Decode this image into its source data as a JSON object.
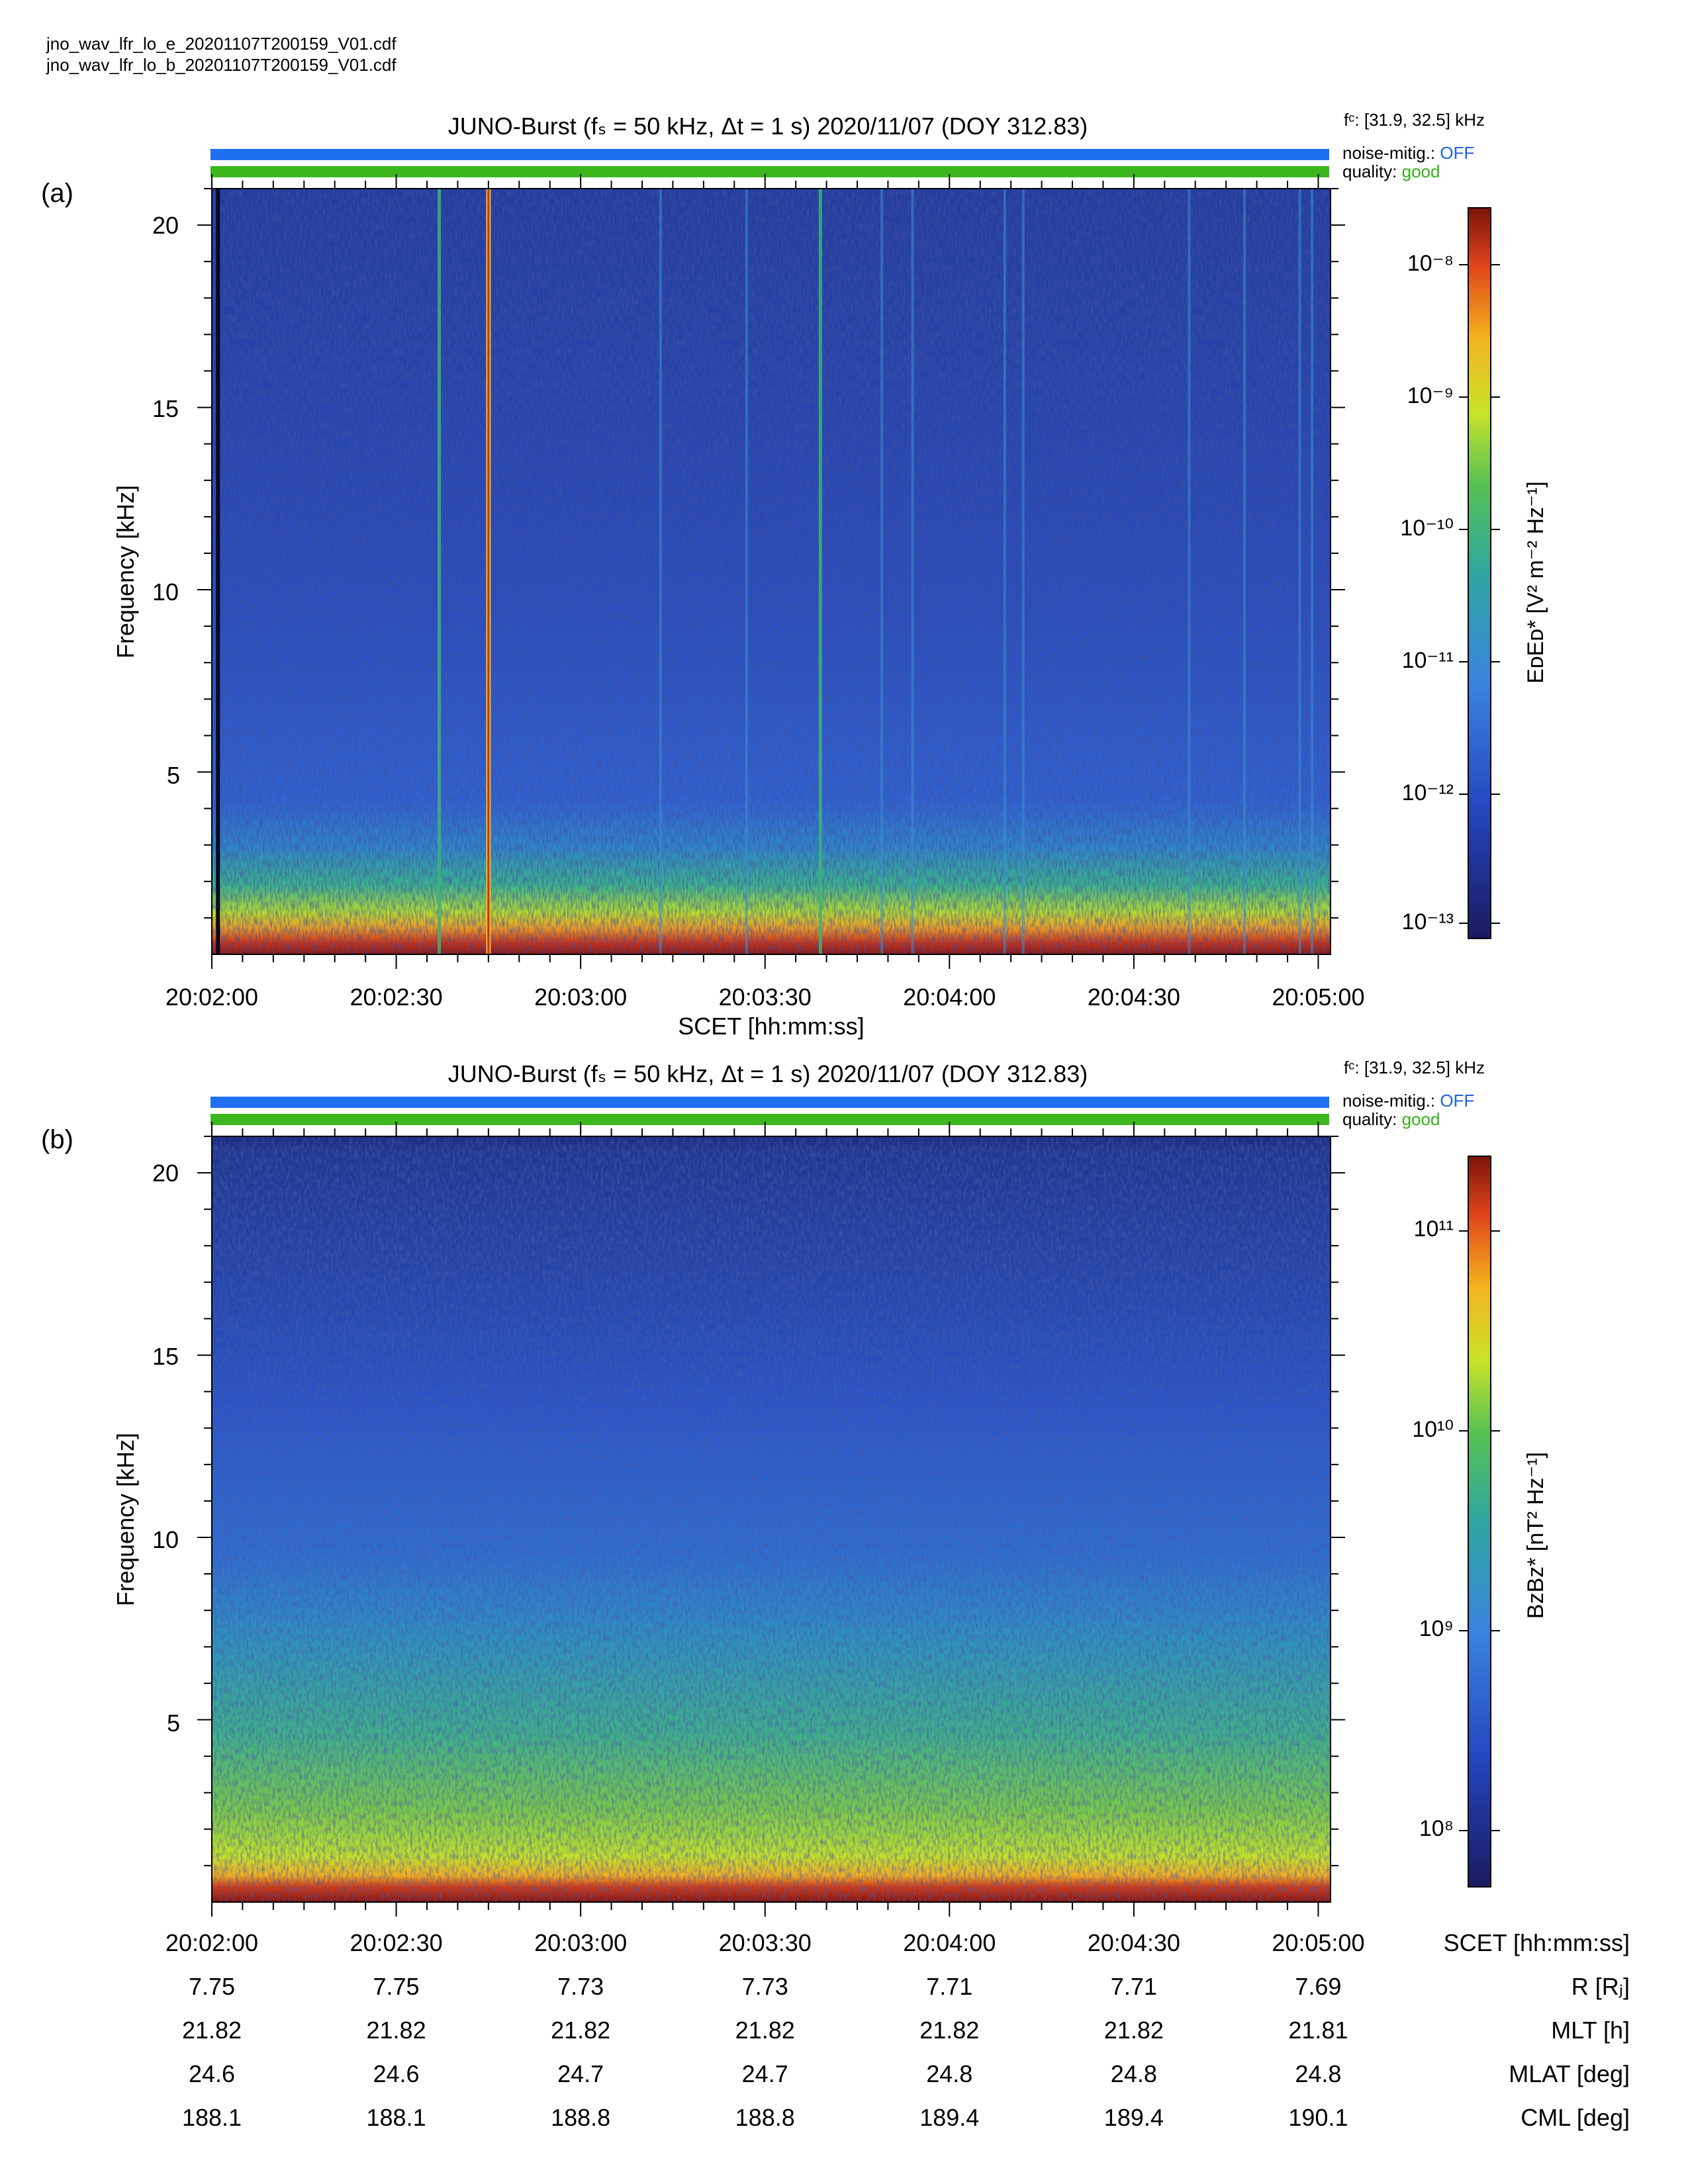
{
  "files": [
    "jno_wav_lfr_lo_e_20201107T200159_V01.cdf",
    "jno_wav_lfr_lo_b_20201107T200159_V01.cdf"
  ],
  "panels": [
    {
      "label": "(a)",
      "title": "JUNO-Burst (fₛ = 50 kHz, Δt = 1 s)  2020/11/07 (DOY 312.83)",
      "fc": "fᶜ: [31.9, 32.5] kHz",
      "noise_label": "noise-mitig.:",
      "noise_value": "OFF",
      "quality_label": "quality:",
      "quality_value": "good",
      "ylabel": "Frequency [kHz]",
      "xlabel": "SCET [hh:mm:ss]",
      "colorbar_label": "EᴅEᴅ* [V² m⁻² Hz⁻¹]",
      "colorbar_ticks": [
        "10⁻⁸",
        "10⁻⁹",
        "10⁻¹⁰",
        "10⁻¹¹",
        "10⁻¹²",
        "10⁻¹³"
      ]
    },
    {
      "label": "(b)",
      "title": "JUNO-Burst (fₛ = 50 kHz, Δt = 1 s)  2020/11/07 (DOY 312.83)",
      "fc": "fᶜ: [31.9, 32.5] kHz",
      "noise_label": "noise-mitig.:",
      "noise_value": "OFF",
      "quality_label": "quality:",
      "quality_value": "good",
      "ylabel": "Frequency [kHz]",
      "colorbar_label": "BᴢBᴢ* [nT² Hz⁻¹]",
      "colorbar_ticks": [
        "10¹¹",
        "10¹⁰",
        "10⁹",
        "10⁸"
      ]
    }
  ],
  "ephemeris": {
    "rows": [
      {
        "name": "SCET [hh:mm:ss]",
        "values": [
          "20:02:00",
          "20:02:30",
          "20:03:00",
          "20:03:30",
          "20:04:00",
          "20:04:30",
          "20:05:00"
        ]
      },
      {
        "name": "R [Rⱼ]",
        "values": [
          "7.75",
          "7.75",
          "7.73",
          "7.73",
          "7.71",
          "7.71",
          "7.69"
        ]
      },
      {
        "name": "MLT [h]",
        "values": [
          "21.82",
          "21.82",
          "21.82",
          "21.82",
          "21.82",
          "21.82",
          "21.81"
        ]
      },
      {
        "name": "MLAT [deg]",
        "values": [
          "24.6",
          "24.6",
          "24.7",
          "24.7",
          "24.8",
          "24.8",
          "24.8"
        ]
      },
      {
        "name": "CML [deg]",
        "values": [
          "188.1",
          "188.1",
          "188.8",
          "188.8",
          "189.4",
          "189.4",
          "190.1"
        ]
      }
    ]
  },
  "colors": {
    "noise_bar": "#1f6ff2",
    "quality_bar": "#3cb81e",
    "off_text": "#1d5fe6",
    "good_text": "#34b11c"
  },
  "chart_data": [
    {
      "type": "heatmap",
      "title": "JUNO-Burst (fₛ = 50 kHz, Δt = 1 s)  2020/11/07 (DOY 312.83)",
      "xlabel": "SCET [hh:mm:ss]",
      "ylabel": "Frequency [kHz]",
      "x_ticks": [
        "20:02:00",
        "20:02:30",
        "20:03:00",
        "20:03:30",
        "20:04:00",
        "20:04:30",
        "20:05:00"
      ],
      "y_ticks": [
        5,
        10,
        15,
        20
      ],
      "xlim_seconds": [
        0,
        182
      ],
      "ylim": [
        0,
        21
      ],
      "color_scale": "log",
      "clim": [
        1e-13,
        3e-08
      ],
      "colorbar_label": "EᴅEᴅ* [V² m⁻² Hz⁻¹]",
      "background_level": 3e-12,
      "low_freq_enhancement_below_khz": 3,
      "vertical_bursts_seconds": [
        1,
        37,
        45,
        73,
        87,
        99,
        109,
        114,
        129,
        132,
        159,
        168,
        177,
        179
      ]
    },
    {
      "type": "heatmap",
      "title": "JUNO-Burst (fₛ = 50 kHz, Δt = 1 s)  2020/11/07 (DOY 312.83)",
      "xlabel": "SCET [hh:mm:ss]",
      "ylabel": "Frequency [kHz]",
      "x_ticks": [
        "20:02:00",
        "20:02:30",
        "20:03:00",
        "20:03:30",
        "20:04:00",
        "20:04:30",
        "20:05:00"
      ],
      "y_ticks": [
        5,
        10,
        15,
        20
      ],
      "xlim_seconds": [
        0,
        182
      ],
      "ylim": [
        0,
        21
      ],
      "color_scale": "log",
      "clim": [
        50000000.0,
        200000000000.0
      ],
      "colorbar_label": "BᴢBᴢ* [nT² Hz⁻¹]",
      "background_level": 300000000.0,
      "low_freq_enhancement_below_khz": 8
    }
  ]
}
